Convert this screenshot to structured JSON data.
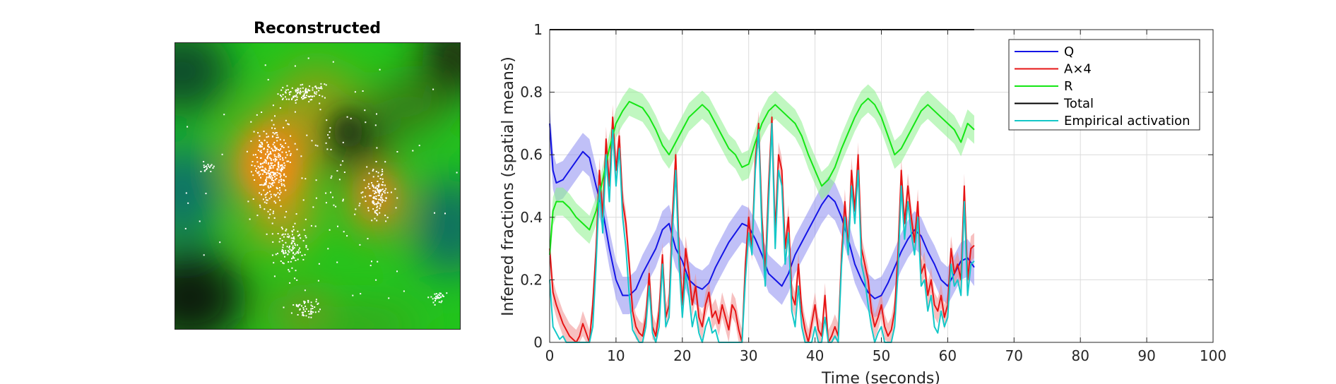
{
  "image_panel": {
    "title": "Reconstructed"
  },
  "chart_data": {
    "type": "line",
    "title": "",
    "xlabel": "Time (seconds)",
    "ylabel": "Inferred fractions (spatial means)",
    "xlim": [
      0,
      100
    ],
    "ylim": [
      0,
      1
    ],
    "xticks": [
      0,
      10,
      20,
      30,
      40,
      50,
      60,
      70,
      80,
      90,
      100
    ],
    "yticks": [
      0,
      0.2,
      0.4,
      0.6,
      0.8,
      1
    ],
    "ytick_labels": [
      "0",
      "0.2",
      "0.4",
      "0.6",
      "0.8",
      "1"
    ],
    "grid": true,
    "legend_position": "top-right",
    "series": [
      {
        "name": "Q",
        "color": "#1414e6",
        "band_color": "#8c8cf0",
        "x": [
          0,
          0.5,
          1,
          2,
          3,
          4,
          5,
          6,
          7,
          8,
          9,
          10,
          11,
          12,
          13,
          14,
          15,
          16,
          17,
          18,
          19,
          20,
          21,
          22,
          23,
          24,
          25,
          26,
          27,
          28,
          29,
          30,
          31,
          32,
          33,
          34,
          35,
          36,
          37,
          38,
          39,
          40,
          41,
          42,
          43,
          44,
          45,
          46,
          47,
          48,
          49,
          50,
          51,
          52,
          53,
          54,
          55,
          56,
          57,
          58,
          59,
          60,
          61,
          62,
          63,
          64
        ],
        "values": [
          0.7,
          0.55,
          0.51,
          0.52,
          0.55,
          0.58,
          0.61,
          0.59,
          0.5,
          0.42,
          0.3,
          0.2,
          0.15,
          0.15,
          0.17,
          0.22,
          0.26,
          0.3,
          0.36,
          0.38,
          0.3,
          0.26,
          0.2,
          0.18,
          0.17,
          0.19,
          0.24,
          0.28,
          0.32,
          0.35,
          0.38,
          0.37,
          0.33,
          0.28,
          0.22,
          0.2,
          0.18,
          0.22,
          0.28,
          0.32,
          0.36,
          0.4,
          0.44,
          0.47,
          0.45,
          0.4,
          0.33,
          0.25,
          0.2,
          0.16,
          0.14,
          0.15,
          0.19,
          0.24,
          0.29,
          0.33,
          0.36,
          0.34,
          0.29,
          0.25,
          0.2,
          0.18,
          0.22,
          0.26,
          0.27,
          0.24
        ],
        "band": 0.06
      },
      {
        "name": "A×4",
        "color": "#e61414",
        "band_color": "#f08c8c",
        "x": [
          0,
          0.5,
          1,
          1.5,
          2,
          2.5,
          3,
          3.5,
          4,
          4.5,
          5,
          5.5,
          6,
          6.5,
          7,
          7.5,
          8,
          8.5,
          9,
          9.5,
          10,
          10.5,
          11,
          11.5,
          12,
          12.5,
          13,
          13.5,
          14,
          14.5,
          15,
          15.5,
          16,
          16.5,
          17,
          17.5,
          18,
          18.5,
          19,
          19.5,
          20,
          20.5,
          21,
          21.5,
          22,
          22.5,
          23,
          23.5,
          24,
          24.5,
          25,
          25.5,
          26,
          26.5,
          27,
          27.5,
          28,
          28.5,
          29,
          29.5,
          30,
          30.5,
          31,
          31.5,
          32,
          32.5,
          33,
          33.5,
          34,
          34.5,
          35,
          35.5,
          36,
          36.5,
          37,
          37.5,
          38,
          38.5,
          39,
          39.5,
          40,
          40.5,
          41,
          41.5,
          42,
          42.5,
          43,
          43.5,
          44,
          44.5,
          45,
          45.5,
          46,
          46.5,
          47,
          47.5,
          48,
          48.5,
          49,
          49.5,
          50,
          50.5,
          51,
          51.5,
          52,
          52.5,
          53,
          53.5,
          54,
          54.5,
          55,
          55.5,
          56,
          56.5,
          57,
          57.5,
          58,
          58.5,
          59,
          59.5,
          60,
          60.5,
          61,
          61.5,
          62,
          62.5,
          63,
          63.5,
          64
        ],
        "values": [
          0.3,
          0.16,
          0.12,
          0.09,
          0.06,
          0.04,
          0.02,
          0.01,
          0.0,
          0.02,
          0.06,
          0.03,
          0.0,
          0.12,
          0.3,
          0.55,
          0.4,
          0.65,
          0.5,
          0.72,
          0.55,
          0.66,
          0.45,
          0.38,
          0.25,
          0.1,
          0.05,
          0.03,
          0.02,
          0.08,
          0.22,
          0.05,
          0.02,
          0.1,
          0.28,
          0.08,
          0.12,
          0.4,
          0.6,
          0.3,
          0.12,
          0.3,
          0.22,
          0.12,
          0.18,
          0.08,
          0.05,
          0.12,
          0.16,
          0.08,
          0.1,
          0.06,
          0.12,
          0.08,
          0.04,
          0.12,
          0.1,
          0.04,
          0.0,
          0.25,
          0.4,
          0.3,
          0.58,
          0.7,
          0.4,
          0.22,
          0.5,
          0.72,
          0.35,
          0.6,
          0.55,
          0.3,
          0.4,
          0.15,
          0.12,
          0.25,
          0.1,
          0.04,
          0.0,
          0.06,
          0.12,
          0.04,
          0.02,
          0.15,
          0.0,
          0.02,
          0.05,
          0.02,
          0.28,
          0.45,
          0.3,
          0.55,
          0.42,
          0.6,
          0.3,
          0.25,
          0.2,
          0.1,
          0.05,
          0.08,
          0.12,
          0.05,
          0.02,
          0.04,
          0.1,
          0.28,
          0.55,
          0.38,
          0.5,
          0.4,
          0.32,
          0.45,
          0.22,
          0.25,
          0.15,
          0.2,
          0.12,
          0.1,
          0.15,
          0.08,
          0.12,
          0.3,
          0.22,
          0.25,
          0.2,
          0.5,
          0.2,
          0.3,
          0.31
        ],
        "band": 0.04
      },
      {
        "name": "R",
        "color": "#14e614",
        "band_color": "#8cf08c",
        "x": [
          0,
          0.5,
          1,
          2,
          3,
          4,
          5,
          6,
          7,
          8,
          9,
          10,
          11,
          12,
          13,
          14,
          15,
          16,
          17,
          18,
          19,
          20,
          21,
          22,
          23,
          24,
          25,
          26,
          27,
          28,
          29,
          30,
          31,
          32,
          33,
          34,
          35,
          36,
          37,
          38,
          39,
          40,
          41,
          42,
          43,
          44,
          45,
          46,
          47,
          48,
          49,
          50,
          51,
          52,
          53,
          54,
          55,
          56,
          57,
          58,
          59,
          60,
          61,
          62,
          63,
          64
        ],
        "values": [
          0.28,
          0.42,
          0.45,
          0.45,
          0.43,
          0.4,
          0.38,
          0.36,
          0.42,
          0.52,
          0.62,
          0.7,
          0.74,
          0.77,
          0.76,
          0.75,
          0.72,
          0.68,
          0.63,
          0.6,
          0.64,
          0.68,
          0.72,
          0.74,
          0.76,
          0.74,
          0.7,
          0.66,
          0.62,
          0.6,
          0.56,
          0.57,
          0.64,
          0.7,
          0.74,
          0.76,
          0.74,
          0.72,
          0.7,
          0.66,
          0.6,
          0.55,
          0.5,
          0.52,
          0.56,
          0.62,
          0.67,
          0.72,
          0.76,
          0.78,
          0.76,
          0.72,
          0.66,
          0.6,
          0.62,
          0.66,
          0.7,
          0.74,
          0.76,
          0.74,
          0.72,
          0.7,
          0.68,
          0.64,
          0.7,
          0.68
        ],
        "band": 0.045
      },
      {
        "name": "Total",
        "color": "#000000",
        "x": [
          0,
          64
        ],
        "values": [
          1,
          1
        ]
      },
      {
        "name": "Empirical activation",
        "color": "#14c8c8",
        "x": [
          0,
          0.5,
          1,
          1.5,
          2,
          2.5,
          3,
          3.5,
          4,
          4.5,
          5,
          5.5,
          6,
          6.5,
          7,
          7.5,
          8,
          8.5,
          9,
          9.5,
          10,
          10.5,
          11,
          11.5,
          12,
          12.5,
          13,
          13.5,
          14,
          14.5,
          15,
          15.5,
          16,
          16.5,
          17,
          17.5,
          18,
          18.5,
          19,
          19.5,
          20,
          20.5,
          21,
          21.5,
          22,
          22.5,
          23,
          23.5,
          24,
          24.5,
          25,
          25.5,
          26,
          26.5,
          27,
          27.5,
          28,
          28.5,
          29,
          29.5,
          30,
          30.5,
          31,
          31.5,
          32,
          32.5,
          33,
          33.5,
          34,
          34.5,
          35,
          35.5,
          36,
          36.5,
          37,
          37.5,
          38,
          38.5,
          39,
          39.5,
          40,
          40.5,
          41,
          41.5,
          42,
          42.5,
          43,
          43.5,
          44,
          44.5,
          45,
          45.5,
          46,
          46.5,
          47,
          47.5,
          48,
          48.5,
          49,
          49.5,
          50,
          50.5,
          51,
          51.5,
          52,
          52.5,
          53,
          53.5,
          54,
          54.5,
          55,
          55.5,
          56,
          56.5,
          57,
          57.5,
          58,
          58.5,
          59,
          59.5,
          60,
          60.5,
          61,
          61.5,
          62,
          62.5,
          63,
          63.5,
          64
        ],
        "values": [
          0.2,
          0.05,
          0.03,
          0.01,
          0.02,
          0.0,
          0.0,
          0.0,
          0.0,
          0.0,
          0.0,
          0.0,
          0.0,
          0.05,
          0.25,
          0.5,
          0.35,
          0.6,
          0.45,
          0.68,
          0.5,
          0.62,
          0.4,
          0.3,
          0.15,
          0.04,
          0.02,
          0.0,
          0.0,
          0.05,
          0.18,
          0.03,
          0.0,
          0.05,
          0.25,
          0.05,
          0.08,
          0.35,
          0.55,
          0.25,
          0.08,
          0.22,
          0.15,
          0.05,
          0.1,
          0.03,
          0.0,
          0.05,
          0.08,
          0.03,
          0.04,
          0.0,
          0.0,
          0.0,
          0.0,
          0.0,
          0.0,
          0.0,
          0.0,
          0.2,
          0.35,
          0.28,
          0.55,
          0.68,
          0.35,
          0.18,
          0.45,
          0.7,
          0.3,
          0.55,
          0.5,
          0.25,
          0.35,
          0.1,
          0.05,
          0.18,
          0.05,
          0.0,
          0.0,
          0.0,
          0.05,
          0.0,
          0.0,
          0.08,
          0.0,
          0.0,
          0.02,
          0.0,
          0.25,
          0.4,
          0.28,
          0.5,
          0.38,
          0.55,
          0.25,
          0.2,
          0.12,
          0.05,
          0.0,
          0.03,
          0.05,
          0.0,
          0.0,
          0.0,
          0.05,
          0.22,
          0.5,
          0.33,
          0.45,
          0.35,
          0.28,
          0.4,
          0.18,
          0.2,
          0.1,
          0.15,
          0.05,
          0.03,
          0.1,
          0.05,
          0.08,
          0.25,
          0.18,
          0.2,
          0.15,
          0.45,
          0.15,
          0.25,
          0.26
        ]
      }
    ]
  }
}
